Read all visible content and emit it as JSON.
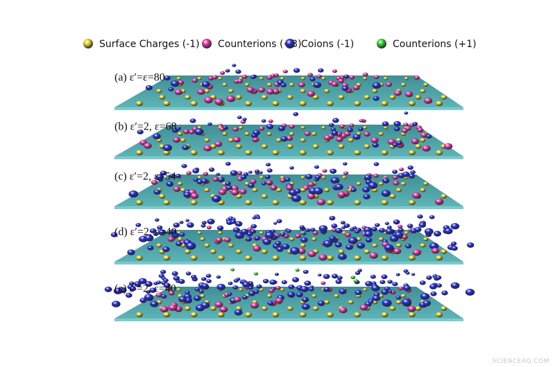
{
  "legend": [
    {
      "label": "Surface Charges (-1)",
      "color": "#e8d530"
    },
    {
      "label": "Counterions (+3)",
      "color": "#e83aa8"
    },
    {
      "label": "Coions (-1)",
      "color": "#2830d8"
    },
    {
      "label": "Counterions (+1)",
      "color": "#30d830"
    }
  ],
  "panels": [
    "(a)  ε′=ε=80",
    "(b) ε′=2, ε=68",
    "(c) ε′=2, ε=54",
    "(d) ε′=2, ε=40",
    "(e) ε′=2, ε=40"
  ],
  "watermark": "SCIENCEAQ.COM"
}
